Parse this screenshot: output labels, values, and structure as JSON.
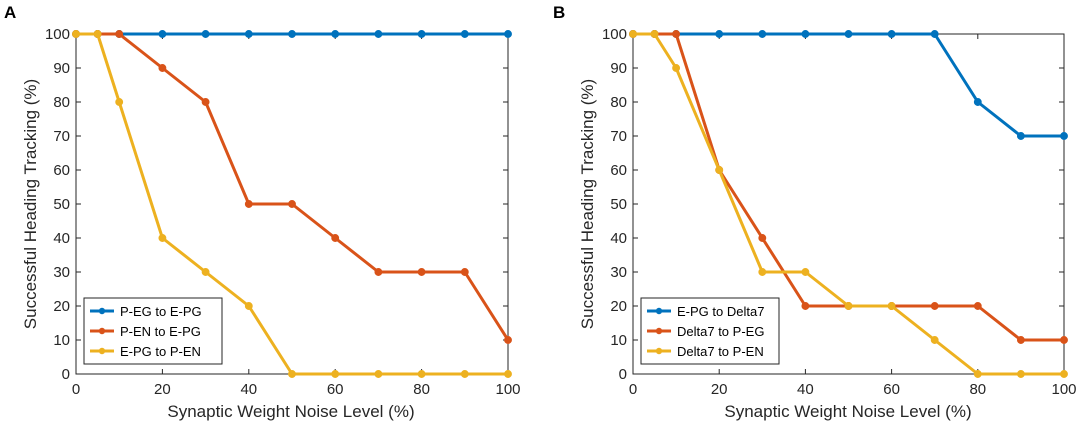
{
  "chart_data": [
    {
      "panel_label": "A",
      "type": "line",
      "xlabel": "Synaptic Weight Noise Level (%)",
      "ylabel": "Successful Heading Tracking (%)",
      "xlim": [
        0,
        100
      ],
      "ylim": [
        0,
        100
      ],
      "xticks": [
        0,
        20,
        40,
        60,
        80,
        100
      ],
      "yticks": [
        0,
        10,
        20,
        30,
        40,
        50,
        60,
        70,
        80,
        90,
        100
      ],
      "legend_position": "bottom-left",
      "x": [
        0,
        5,
        10,
        20,
        30,
        40,
        50,
        60,
        70,
        80,
        90,
        100
      ],
      "series": [
        {
          "name": "P-EG to E-PG",
          "color": "#0072BD",
          "values": [
            100,
            100,
            100,
            100,
            100,
            100,
            100,
            100,
            100,
            100,
            100,
            100
          ]
        },
        {
          "name": "P-EN to E-PG",
          "color": "#D95319",
          "values": [
            100,
            100,
            100,
            90,
            80,
            50,
            50,
            40,
            30,
            30,
            30,
            10
          ]
        },
        {
          "name": "E-PG to P-EN",
          "color": "#EDB120",
          "values": [
            100,
            100,
            80,
            40,
            30,
            20,
            0,
            0,
            0,
            0,
            0,
            0
          ]
        }
      ]
    },
    {
      "panel_label": "B",
      "type": "line",
      "xlabel": "Synaptic Weight Noise Level (%)",
      "ylabel": "Successful Heading Tracking (%)",
      "xlim": [
        0,
        100
      ],
      "ylim": [
        0,
        100
      ],
      "xticks": [
        0,
        20,
        40,
        60,
        80,
        100
      ],
      "yticks": [
        0,
        10,
        20,
        30,
        40,
        50,
        60,
        70,
        80,
        90,
        100
      ],
      "legend_position": "bottom-left",
      "x": [
        0,
        5,
        10,
        20,
        30,
        40,
        50,
        60,
        70,
        80,
        90,
        100
      ],
      "series": [
        {
          "name": "E-PG to Delta7",
          "color": "#0072BD",
          "values": [
            100,
            100,
            100,
            100,
            100,
            100,
            100,
            100,
            100,
            80,
            70,
            70
          ]
        },
        {
          "name": "Delta7 to P-EG",
          "color": "#D95319",
          "values": [
            100,
            100,
            100,
            60,
            40,
            20,
            20,
            20,
            20,
            20,
            10,
            10
          ]
        },
        {
          "name": "Delta7 to P-EN",
          "color": "#EDB120",
          "values": [
            100,
            100,
            90,
            60,
            30,
            30,
            20,
            20,
            10,
            0,
            0,
            0
          ]
        }
      ]
    }
  ]
}
